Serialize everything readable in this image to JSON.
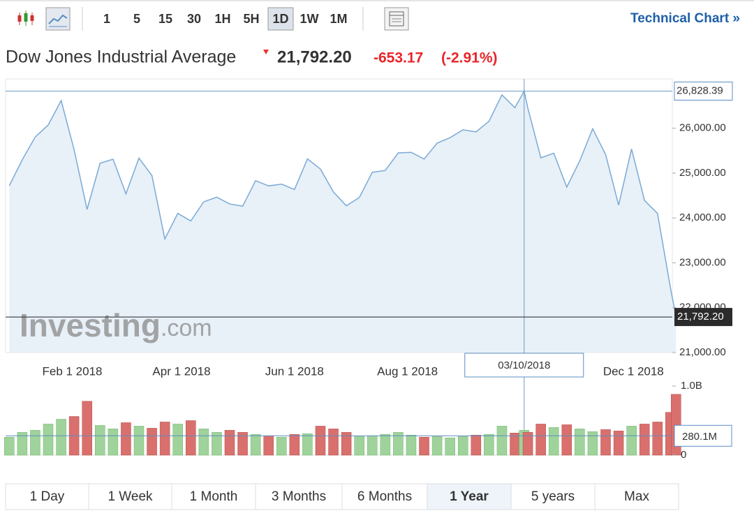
{
  "toolbar": {
    "intervals": [
      "1",
      "5",
      "15",
      "30",
      "1H",
      "5H",
      "1D",
      "1W",
      "1M"
    ],
    "active_interval": 6,
    "link": "Technical Chart »"
  },
  "header": {
    "name": "Dow Jones Industrial Average",
    "price": "21,792.20",
    "change": "-653.17",
    "change_pct": "(-2.91%)"
  },
  "chart_data": [
    {
      "type": "area",
      "color": "#7aaad6",
      "fill": "#e8f0f8",
      "x": [
        "2017-12-29",
        "2018-01-05",
        "2018-01-12",
        "2018-01-19",
        "2018-01-26",
        "2018-02-02",
        "2018-02-09",
        "2018-02-16",
        "2018-02-23",
        "2018-03-02",
        "2018-03-09",
        "2018-03-16",
        "2018-03-23",
        "2018-03-30",
        "2018-04-06",
        "2018-04-13",
        "2018-04-20",
        "2018-04-27",
        "2018-05-04",
        "2018-05-11",
        "2018-05-18",
        "2018-05-25",
        "2018-06-01",
        "2018-06-08",
        "2018-06-15",
        "2018-06-22",
        "2018-06-29",
        "2018-07-06",
        "2018-07-13",
        "2018-07-20",
        "2018-07-27",
        "2018-08-03",
        "2018-08-10",
        "2018-08-17",
        "2018-08-24",
        "2018-08-31",
        "2018-09-07",
        "2018-09-14",
        "2018-09-21",
        "2018-09-28",
        "2018-10-03",
        "2018-10-05",
        "2018-10-12",
        "2018-10-19",
        "2018-10-26",
        "2018-11-02",
        "2018-11-09",
        "2018-11-16",
        "2018-11-23",
        "2018-11-30",
        "2018-12-07",
        "2018-12-14",
        "2018-12-21",
        "2018-12-24"
      ],
      "values": [
        24719,
        25296,
        25803,
        26071,
        26616,
        25521,
        24190,
        25219,
        25310,
        24538,
        25336,
        24946,
        23533,
        24103,
        23933,
        24360,
        24463,
        24311,
        24263,
        24831,
        24715,
        24753,
        24635,
        25317,
        25090,
        24581,
        24271,
        24456,
        25019,
        25058,
        25451,
        25463,
        25313,
        25669,
        25790,
        25965,
        25917,
        26155,
        26743,
        26458,
        26828.39,
        26447,
        25340,
        25444,
        24688,
        25271,
        25989,
        25413,
        24286,
        25538,
        24389,
        24101,
        22445,
        21792.2
      ],
      "xlim": [
        "2017-12-27",
        "2018-12-22"
      ],
      "xticks": [
        {
          "value": "2018-02-01",
          "label": "Feb 1 2018"
        },
        {
          "value": "2018-04-01",
          "label": "Apr 1 2018"
        },
        {
          "value": "2018-06-01",
          "label": "Jun 1 2018"
        },
        {
          "value": "2018-08-01",
          "label": "Aug 1 2018"
        },
        {
          "value": "2018-12-01",
          "label": "Dec 1 2018"
        }
      ],
      "ylim": [
        21000,
        27100
      ],
      "yticks": [
        {
          "value": 21000,
          "label": "21,000.00"
        },
        {
          "value": 22000,
          "label": "22,000.00"
        },
        {
          "value": 23000,
          "label": "23,000.00"
        },
        {
          "value": 24000,
          "label": "24,000.00"
        },
        {
          "value": 25000,
          "label": "25,000.00"
        },
        {
          "value": 26000,
          "label": "26,000.00"
        }
      ],
      "last_value": {
        "value": 21792.2,
        "label": "21,792.20"
      },
      "crosshair": {
        "x": "2018-10-03",
        "date_label": "03/10/2018",
        "value": 26828.39,
        "label": "26,828.39"
      },
      "watermark": {
        "brand": "Investing",
        "suffix": ".com"
      }
    },
    {
      "type": "bar",
      "up_color": "#9fd39b",
      "down_color": "#d9706d",
      "values": [
        260000000,
        330000000,
        360000000,
        450000000,
        520000000,
        560000000,
        780000000,
        430000000,
        380000000,
        470000000,
        420000000,
        390000000,
        480000000,
        450000000,
        500000000,
        380000000,
        330000000,
        360000000,
        330000000,
        300000000,
        280000000,
        260000000,
        300000000,
        310000000,
        420000000,
        380000000,
        330000000,
        270000000,
        280000000,
        300000000,
        330000000,
        290000000,
        260000000,
        270000000,
        250000000,
        270000000,
        290000000,
        300000000,
        420000000,
        320000000,
        360000000,
        330000000,
        450000000,
        400000000,
        440000000,
        380000000,
        340000000,
        370000000,
        350000000,
        420000000,
        450000000,
        480000000,
        620000000,
        880000000
      ],
      "ylim": [
        0,
        1000000000
      ],
      "yticks": [
        0,
        {
          "value": 1000000000,
          "label": "1.0B"
        }
      ],
      "average": {
        "value": 280100000,
        "label": "280.1M"
      }
    }
  ],
  "range_buttons": {
    "labels": [
      "1 Day",
      "1 Week",
      "1 Month",
      "3 Months",
      "6 Months",
      "1 Year",
      "5 years",
      "Max"
    ],
    "active": 5
  }
}
